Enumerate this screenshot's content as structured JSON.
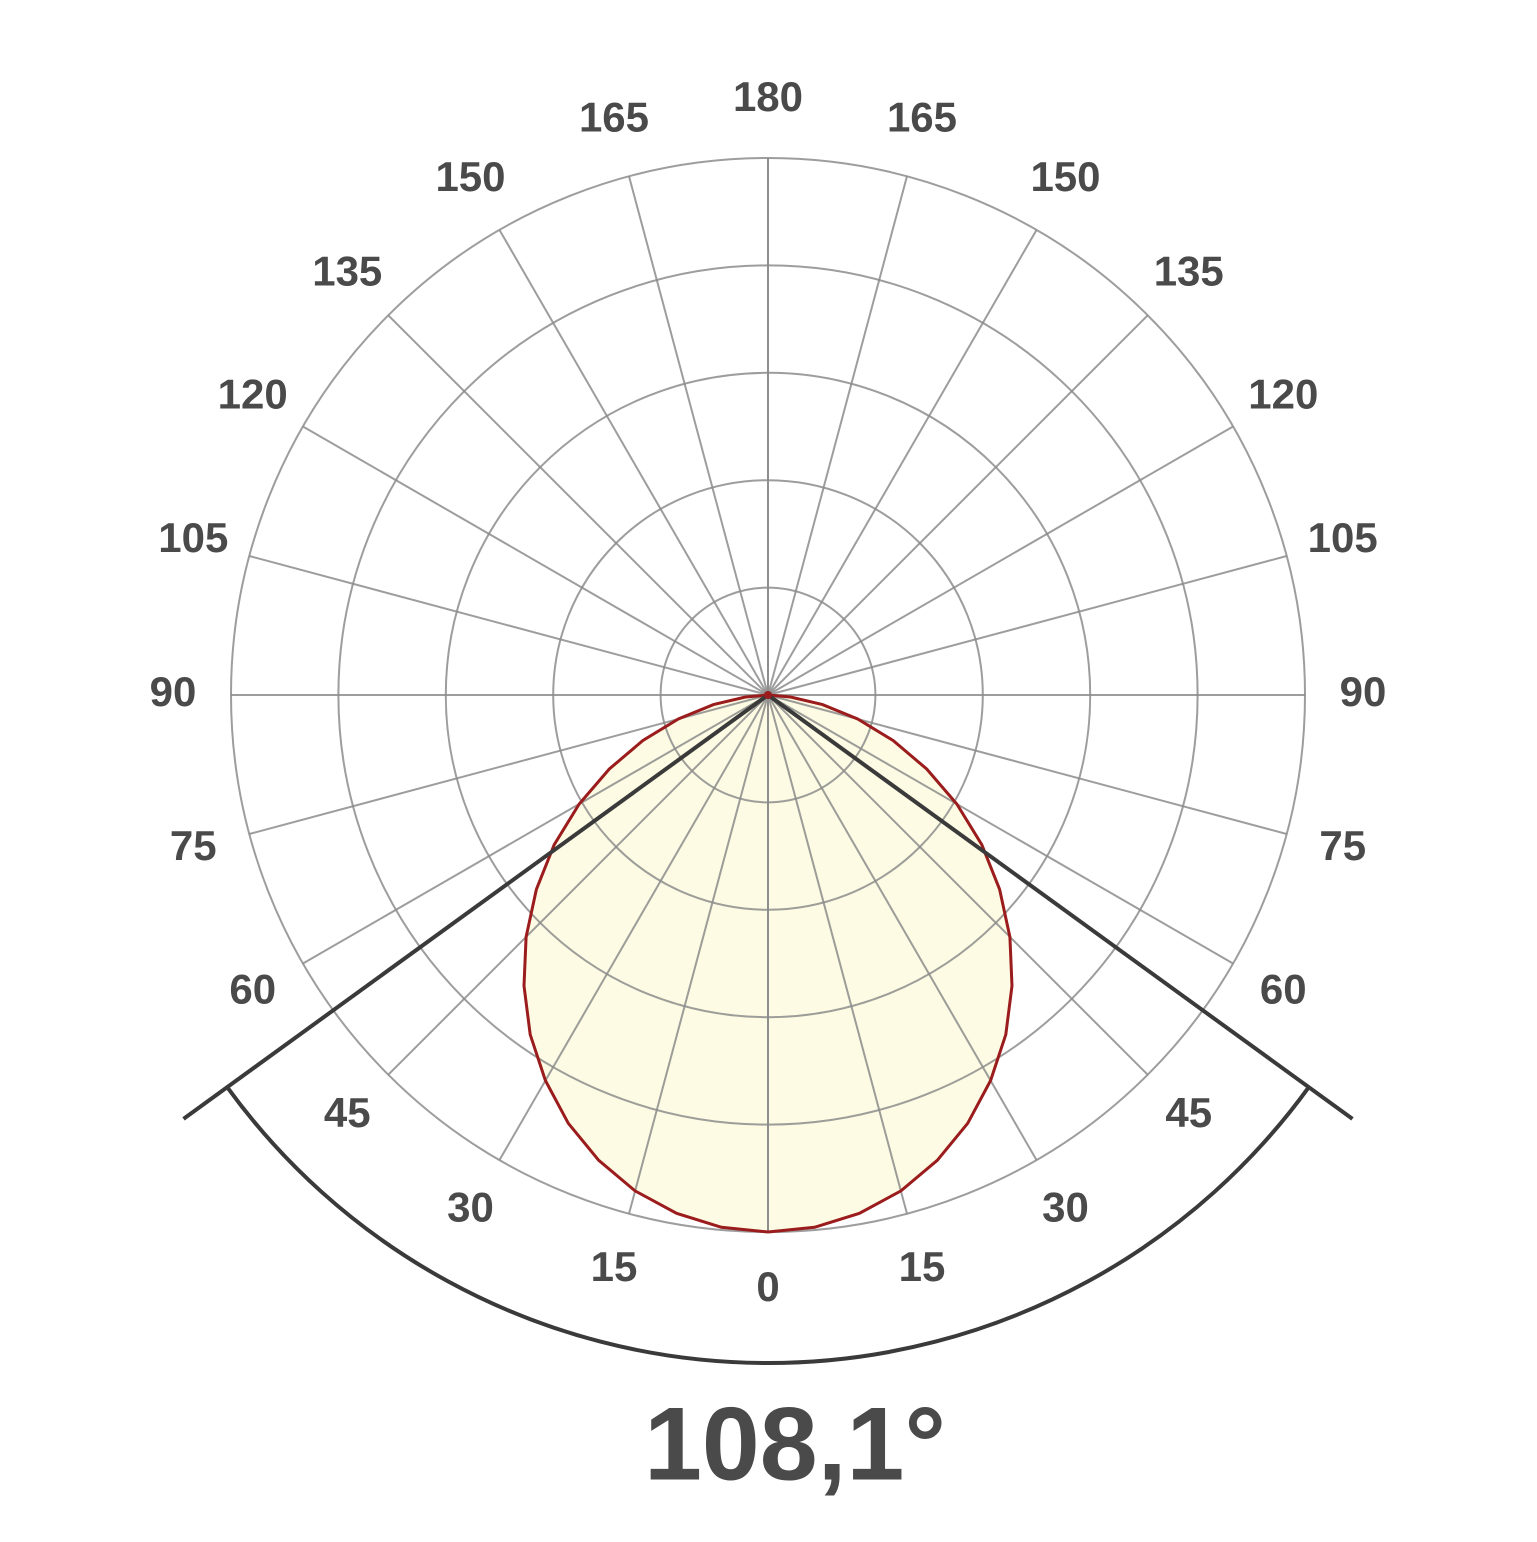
{
  "chart_data": {
    "type": "polar",
    "angles": [
      0,
      5,
      10,
      15,
      20,
      25,
      30,
      35,
      40,
      45,
      50,
      55,
      60,
      65,
      70,
      75,
      80,
      85,
      90
    ],
    "values": [
      100,
      99.5,
      98.0,
      95.6,
      92.2,
      88.0,
      82.9,
      77.2,
      70.7,
      63.7,
      56.3,
      48.6,
      40.6,
      32.6,
      24.8,
      17.3,
      10.3,
      4.2,
      0
    ],
    "color": "#9b1c1c",
    "fill": "#fdfbe3",
    "rlim": [
      0,
      100
    ],
    "rticks": [
      20,
      40,
      60,
      80,
      100
    ],
    "angle_ticks": [
      0,
      15,
      30,
      45,
      60,
      75,
      90,
      105,
      120,
      135,
      150,
      165,
      180
    ],
    "beam_angle": 108.1,
    "beam_angle_label": "108,1°",
    "grid": true
  }
}
